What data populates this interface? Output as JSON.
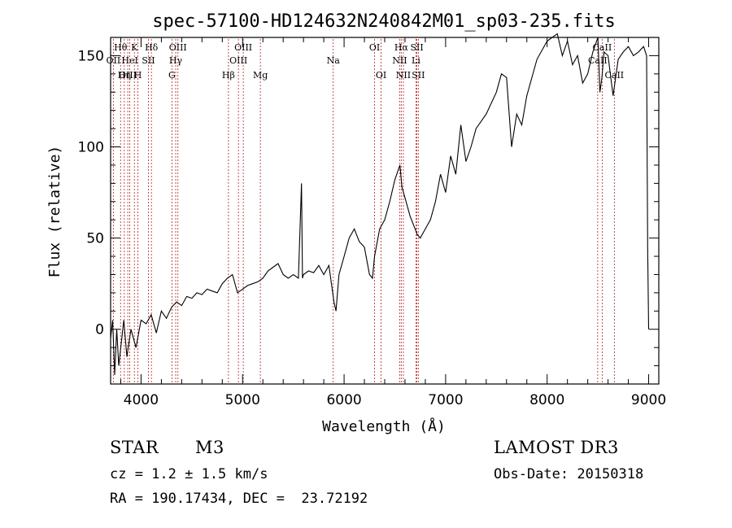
{
  "chart_data": {
    "type": "line",
    "title": "spec-57100-HD124632N240842M01_sp03-235.fits",
    "xlabel": "Wavelength (Å)",
    "ylabel": "Flux (relative)",
    "xlim": [
      3700,
      9100
    ],
    "ylim": [
      -30,
      160
    ],
    "x_ticks": [
      4000,
      5000,
      6000,
      7000,
      8000,
      9000
    ],
    "y_ticks": [
      0,
      50,
      100,
      150
    ],
    "series": [
      {
        "name": "flux",
        "x": [
          3700,
          3720,
          3740,
          3760,
          3780,
          3800,
          3830,
          3860,
          3900,
          3950,
          4000,
          4050,
          4100,
          4150,
          4200,
          4250,
          4300,
          4350,
          4400,
          4450,
          4500,
          4550,
          4600,
          4650,
          4700,
          4750,
          4800,
          4850,
          4900,
          4950,
          5000,
          5050,
          5100,
          5150,
          5200,
          5250,
          5300,
          5350,
          5400,
          5450,
          5500,
          5550,
          5580,
          5590,
          5600,
          5650,
          5700,
          5750,
          5800,
          5850,
          5900,
          5920,
          5950,
          6000,
          6050,
          6100,
          6150,
          6200,
          6250,
          6280,
          6300,
          6350,
          6400,
          6450,
          6500,
          6550,
          6570,
          6600,
          6650,
          6700,
          6720,
          6750,
          6800,
          6850,
          6900,
          6950,
          7000,
          7050,
          7100,
          7150,
          7200,
          7250,
          7300,
          7400,
          7500,
          7550,
          7600,
          7650,
          7700,
          7750,
          7800,
          7900,
          8000,
          8100,
          8150,
          8200,
          8250,
          8300,
          8350,
          8400,
          8450,
          8500,
          8520,
          8540,
          8560,
          8600,
          8650,
          8700,
          8750,
          8800,
          8850,
          8900,
          8950,
          8980,
          8990,
          9000
        ],
        "values": [
          -5,
          5,
          -25,
          0,
          -20,
          -10,
          5,
          -15,
          0,
          -10,
          5,
          3,
          8,
          -2,
          10,
          6,
          12,
          15,
          13,
          18,
          17,
          20,
          19,
          22,
          21,
          20,
          25,
          28,
          30,
          20,
          22,
          24,
          25,
          26,
          28,
          32,
          34,
          36,
          30,
          28,
          30,
          28,
          80,
          28,
          30,
          32,
          31,
          35,
          30,
          35,
          15,
          10,
          30,
          40,
          50,
          55,
          48,
          45,
          30,
          28,
          40,
          55,
          60,
          70,
          82,
          90,
          78,
          72,
          62,
          55,
          52,
          50,
          55,
          60,
          70,
          85,
          75,
          95,
          85,
          112,
          92,
          100,
          110,
          118,
          130,
          140,
          138,
          100,
          118,
          112,
          128,
          148,
          158,
          162,
          150,
          158,
          145,
          150,
          135,
          140,
          152,
          160,
          130,
          138,
          152,
          150,
          128,
          148,
          152,
          155,
          150,
          152,
          155,
          150,
          45,
          0
        ]
      }
    ],
    "lines": [
      {
        "name": "Hθ",
        "x": 3798,
        "row": 1
      },
      {
        "name": "OII",
        "x": 3727,
        "row": 2
      },
      {
        "name": "OIII",
        "x": 3869,
        "row": 3
      },
      {
        "name": "K",
        "x": 3934,
        "row": 1
      },
      {
        "name": "HeI",
        "x": 3889,
        "row": 2
      },
      {
        "name": "Hη",
        "x": 3835,
        "row": 3
      },
      {
        "name": "H",
        "x": 3969,
        "row": 3
      },
      {
        "name": "SII",
        "x": 4072,
        "row": 2
      },
      {
        "name": "Hδ",
        "x": 4102,
        "row": 1
      },
      {
        "name": "OIII",
        "x": 4363,
        "row": 1
      },
      {
        "name": "Hγ",
        "x": 4341,
        "row": 2
      },
      {
        "name": "G",
        "x": 4304,
        "row": 3
      },
      {
        "name": "Hβ",
        "x": 4861,
        "row": 3
      },
      {
        "name": "OIII",
        "x": 5007,
        "row": 1
      },
      {
        "name": "OIII",
        "x": 4959,
        "row": 2
      },
      {
        "name": "Mg",
        "x": 5175,
        "row": 3
      },
      {
        "name": "Na",
        "x": 5893,
        "row": 2
      },
      {
        "name": "OI",
        "x": 6300,
        "row": 1
      },
      {
        "name": "OI",
        "x": 6364,
        "row": 3
      },
      {
        "name": "Hα",
        "x": 6563,
        "row": 1
      },
      {
        "name": "NII",
        "x": 6548,
        "row": 2
      },
      {
        "name": "NII",
        "x": 6584,
        "row": 3
      },
      {
        "name": "SII",
        "x": 6717,
        "row": 1
      },
      {
        "name": "Li",
        "x": 6708,
        "row": 2
      },
      {
        "name": "SII",
        "x": 6731,
        "row": 3
      },
      {
        "name": "CaII",
        "x": 8542,
        "row": 1
      },
      {
        "name": "CaII",
        "x": 8498,
        "row": 2
      },
      {
        "name": "CaII",
        "x": 8662,
        "row": 3
      }
    ]
  },
  "info": {
    "object_type": "STAR",
    "subclass": "M3",
    "survey": "LAMOST DR3",
    "cz": "cz = 1.2 ± 1.5 km/s",
    "obs_date": "Obs-Date: 20150318",
    "coords": "RA = 190.17434, DEC =  23.72192"
  },
  "colors": {
    "axis": "#000000",
    "spectrum": "#000000",
    "line_marker": "#b22222"
  }
}
